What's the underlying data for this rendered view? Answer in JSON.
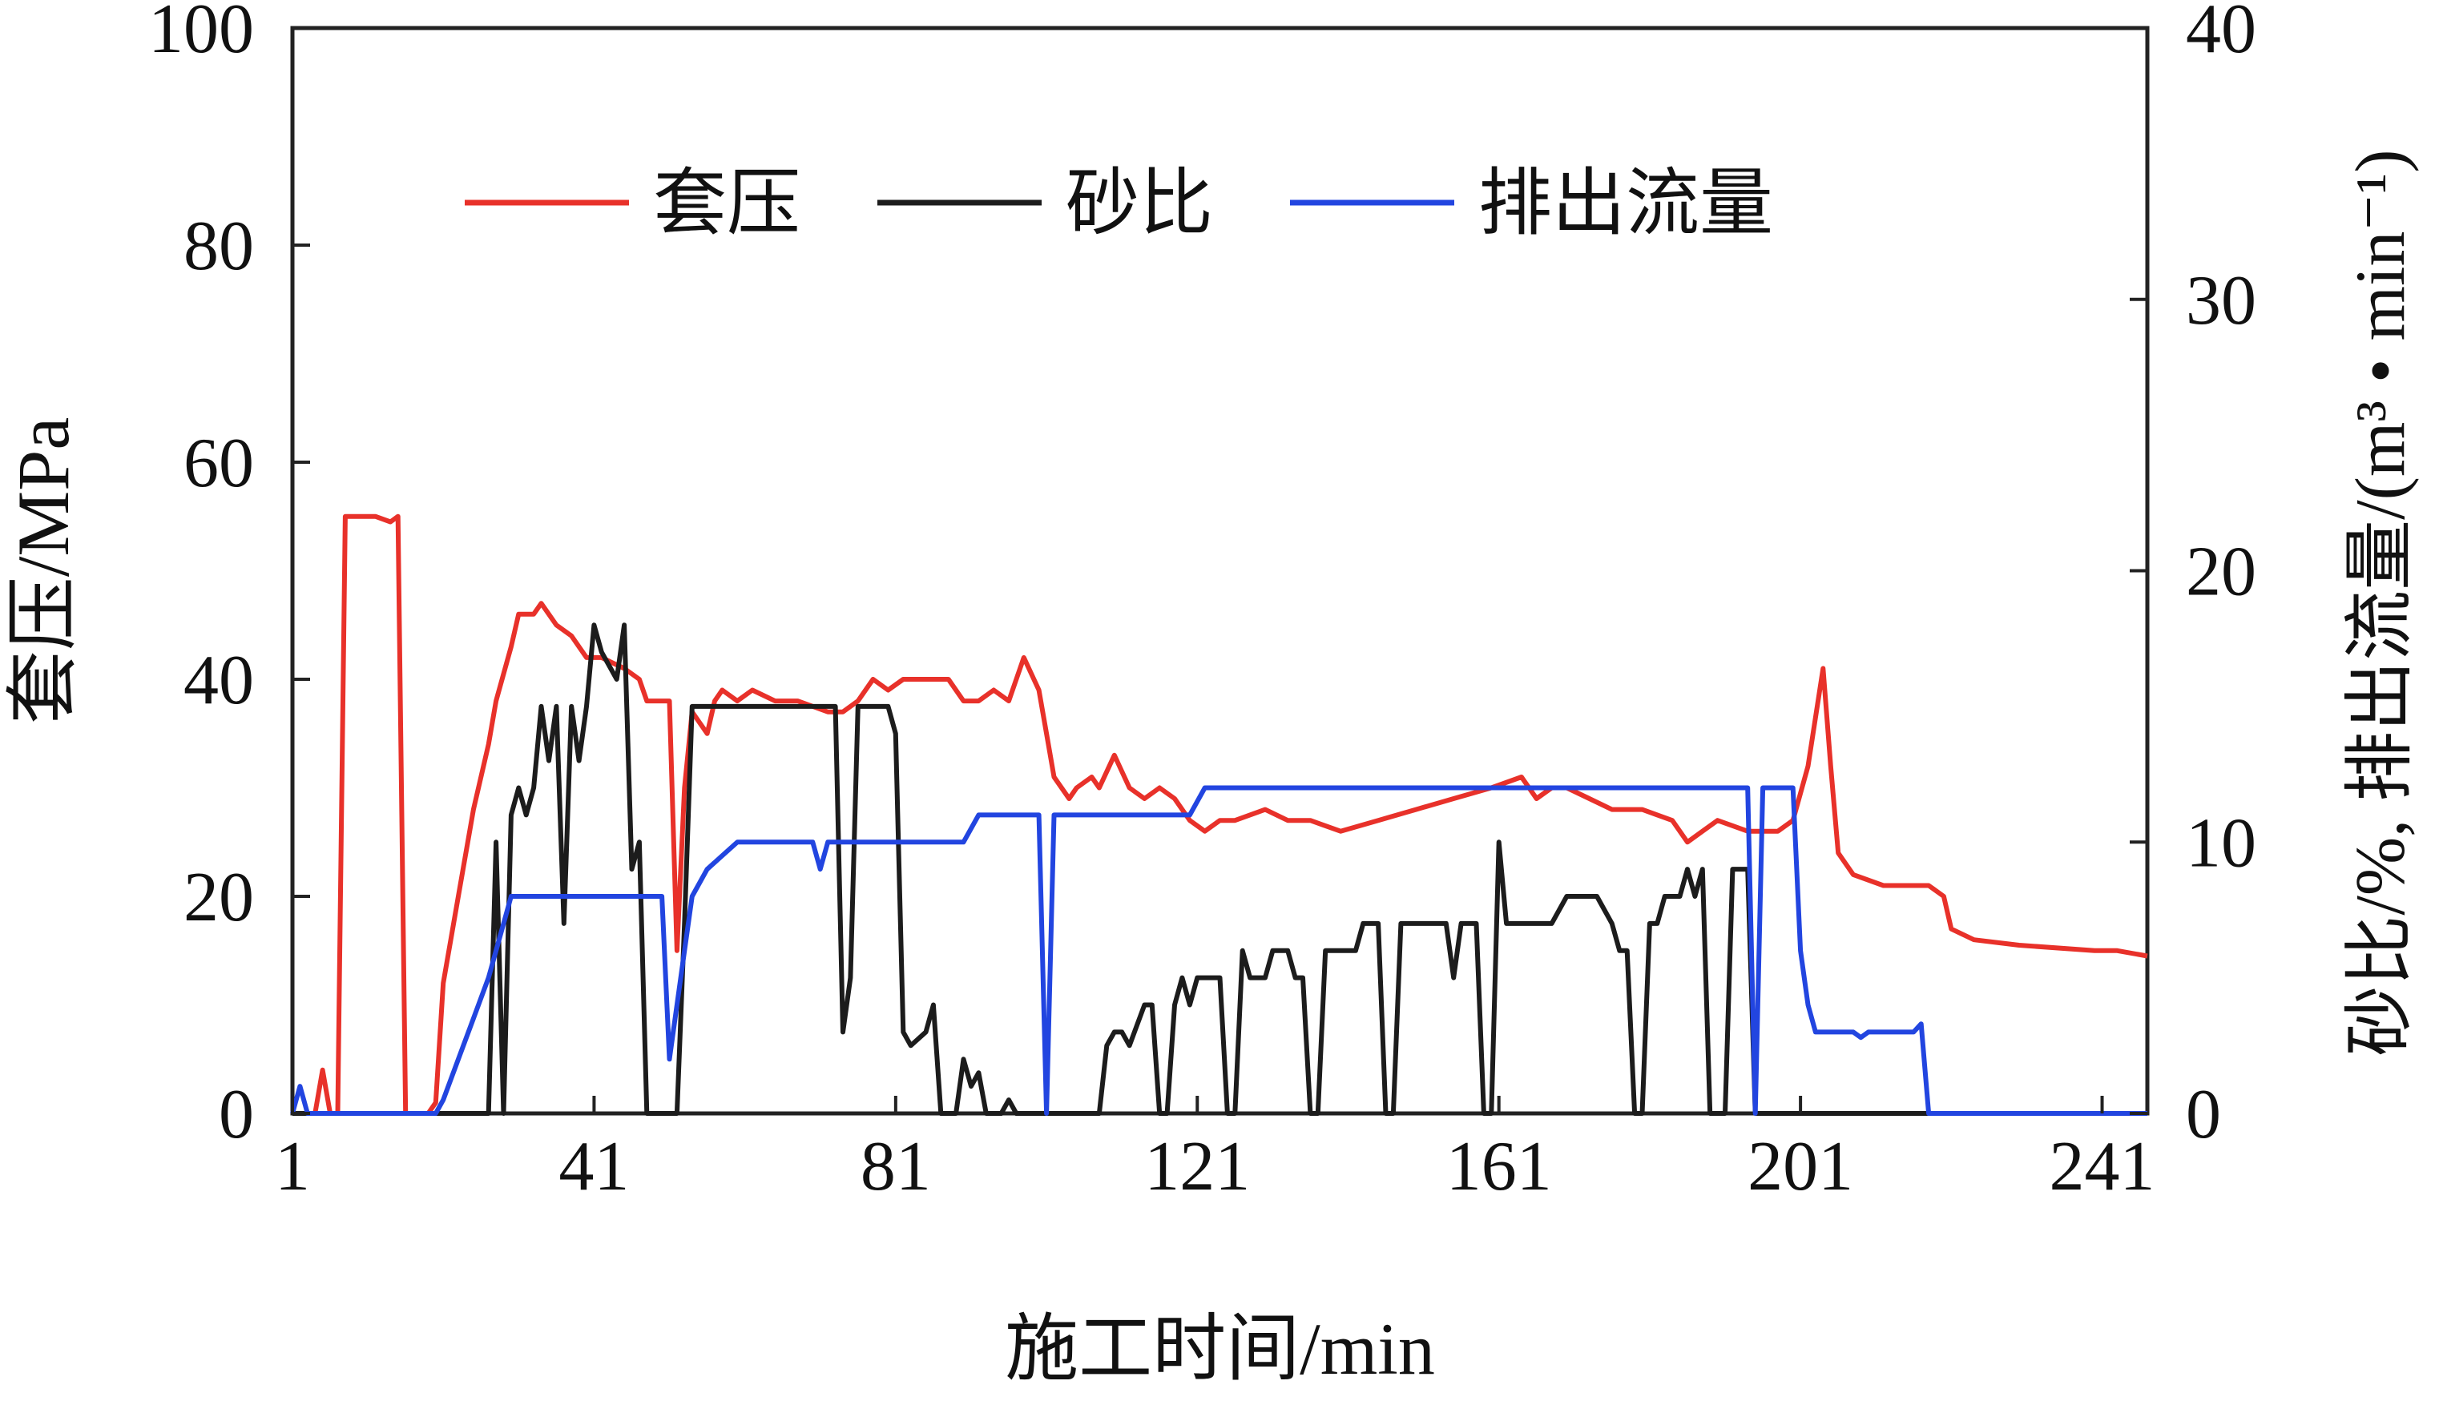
{
  "chart_data": {
    "type": "line",
    "xlabel": "施工时间/min",
    "ylabel_left": "套压/MPa",
    "ylabel_right": "砂比/%, 排出流量/(m³ • min⁻¹)",
    "x_ticks": [
      1,
      41,
      81,
      121,
      161,
      201,
      241
    ],
    "xlim": [
      1,
      247
    ],
    "ylim_left": [
      0,
      100
    ],
    "yticks_left": [
      0,
      20,
      40,
      60,
      80,
      100
    ],
    "ylim_right": [
      0,
      40
    ],
    "yticks_right": [
      0,
      10,
      20,
      30,
      40
    ],
    "grid": false,
    "legend_position": "top-center",
    "series": [
      {
        "name": "套压",
        "axis": "left",
        "color": "#e8312a",
        "points": [
          [
            1,
            0
          ],
          [
            4,
            0
          ],
          [
            5,
            4
          ],
          [
            6,
            0
          ],
          [
            7,
            0
          ],
          [
            8,
            55
          ],
          [
            12,
            55
          ],
          [
            14,
            54.5
          ],
          [
            15,
            55
          ],
          [
            16,
            0
          ],
          [
            19,
            0
          ],
          [
            20,
            1
          ],
          [
            21,
            12
          ],
          [
            23,
            20
          ],
          [
            25,
            28
          ],
          [
            27,
            34
          ],
          [
            28,
            38
          ],
          [
            30,
            43
          ],
          [
            31,
            46
          ],
          [
            33,
            46
          ],
          [
            34,
            47
          ],
          [
            36,
            45
          ],
          [
            38,
            44
          ],
          [
            40,
            42
          ],
          [
            42,
            42
          ],
          [
            45,
            41
          ],
          [
            47,
            40
          ],
          [
            48,
            38
          ],
          [
            51,
            38
          ],
          [
            52,
            15
          ],
          [
            53,
            30
          ],
          [
            54,
            37
          ],
          [
            56,
            35
          ],
          [
            57,
            38
          ],
          [
            58,
            39
          ],
          [
            60,
            38
          ],
          [
            62,
            39
          ],
          [
            65,
            38
          ],
          [
            68,
            38
          ],
          [
            72,
            37
          ],
          [
            74,
            37
          ],
          [
            76,
            38
          ],
          [
            78,
            40
          ],
          [
            80,
            39
          ],
          [
            82,
            40
          ],
          [
            85,
            40
          ],
          [
            88,
            40
          ],
          [
            90,
            38
          ],
          [
            92,
            38
          ],
          [
            94,
            39
          ],
          [
            96,
            38
          ],
          [
            98,
            42
          ],
          [
            100,
            39
          ],
          [
            101,
            35
          ],
          [
            102,
            31
          ],
          [
            103,
            30
          ],
          [
            104,
            29
          ],
          [
            105,
            30
          ],
          [
            107,
            31
          ],
          [
            108,
            30
          ],
          [
            110,
            33
          ],
          [
            112,
            30
          ],
          [
            114,
            29
          ],
          [
            116,
            30
          ],
          [
            118,
            29
          ],
          [
            120,
            27
          ],
          [
            122,
            26
          ],
          [
            124,
            27
          ],
          [
            126,
            27
          ],
          [
            130,
            28
          ],
          [
            133,
            27
          ],
          [
            136,
            27
          ],
          [
            140,
            26
          ],
          [
            145,
            27
          ],
          [
            150,
            28
          ],
          [
            155,
            29
          ],
          [
            160,
            30
          ],
          [
            164,
            31
          ],
          [
            166,
            29
          ],
          [
            168,
            30
          ],
          [
            170,
            30
          ],
          [
            173,
            29
          ],
          [
            176,
            28
          ],
          [
            180,
            28
          ],
          [
            184,
            27
          ],
          [
            186,
            25
          ],
          [
            188,
            26
          ],
          [
            190,
            27
          ],
          [
            194,
            26
          ],
          [
            198,
            26
          ],
          [
            200,
            27
          ],
          [
            202,
            32
          ],
          [
            204,
            41
          ],
          [
            205,
            32
          ],
          [
            206,
            24
          ],
          [
            208,
            22
          ],
          [
            212,
            21
          ],
          [
            218,
            21
          ],
          [
            220,
            20
          ],
          [
            221,
            17
          ],
          [
            224,
            16
          ],
          [
            230,
            15.5
          ],
          [
            240,
            15
          ],
          [
            243,
            15
          ],
          [
            247,
            14.5
          ]
        ]
      },
      {
        "name": "砂比",
        "axis": "right",
        "color": "#1c1c1c",
        "points": [
          [
            1,
            0
          ],
          [
            27,
            0
          ],
          [
            28,
            10
          ],
          [
            29,
            0
          ],
          [
            30,
            11
          ],
          [
            31,
            12
          ],
          [
            32,
            11
          ],
          [
            33,
            12
          ],
          [
            34,
            15
          ],
          [
            35,
            13
          ],
          [
            36,
            15
          ],
          [
            37,
            7
          ],
          [
            38,
            15
          ],
          [
            39,
            13
          ],
          [
            40,
            15
          ],
          [
            41,
            18
          ],
          [
            42,
            17
          ],
          [
            44,
            16
          ],
          [
            45,
            18
          ],
          [
            46,
            9
          ],
          [
            47,
            10
          ],
          [
            48,
            0
          ],
          [
            51,
            0
          ],
          [
            52,
            0
          ],
          [
            53,
            7
          ],
          [
            54,
            15
          ],
          [
            56,
            15
          ],
          [
            57,
            15
          ],
          [
            58,
            15
          ],
          [
            60,
            15
          ],
          [
            62,
            15
          ],
          [
            64,
            15
          ],
          [
            66,
            15
          ],
          [
            68,
            15
          ],
          [
            70,
            15
          ],
          [
            72,
            15
          ],
          [
            73,
            15
          ],
          [
            74,
            3
          ],
          [
            75,
            5
          ],
          [
            76,
            15
          ],
          [
            78,
            15
          ],
          [
            80,
            15
          ],
          [
            81,
            14
          ],
          [
            82,
            3
          ],
          [
            83,
            2.5
          ],
          [
            85,
            3
          ],
          [
            86,
            4
          ],
          [
            87,
            0
          ],
          [
            89,
            0
          ],
          [
            90,
            2
          ],
          [
            91,
            1
          ],
          [
            92,
            1.5
          ],
          [
            93,
            0
          ],
          [
            95,
            0
          ],
          [
            96,
            0.5
          ],
          [
            97,
            0
          ],
          [
            106,
            0
          ],
          [
            108,
            0
          ],
          [
            109,
            2.5
          ],
          [
            110,
            3
          ],
          [
            111,
            3
          ],
          [
            112,
            2.5
          ],
          [
            114,
            4
          ],
          [
            115,
            4
          ],
          [
            116,
            0
          ],
          [
            117,
            0
          ],
          [
            118,
            4
          ],
          [
            119,
            5
          ],
          [
            120,
            4
          ],
          [
            121,
            5
          ],
          [
            122,
            5
          ],
          [
            124,
            5
          ],
          [
            125,
            0
          ],
          [
            126,
            0
          ],
          [
            127,
            6
          ],
          [
            128,
            5
          ],
          [
            130,
            5
          ],
          [
            131,
            6
          ],
          [
            132,
            6
          ],
          [
            133,
            6
          ],
          [
            134,
            5
          ],
          [
            135,
            5
          ],
          [
            136,
            0
          ],
          [
            137,
            0
          ],
          [
            138,
            6
          ],
          [
            139,
            6
          ],
          [
            140,
            6
          ],
          [
            142,
            6
          ],
          [
            143,
            7
          ],
          [
            144,
            7
          ],
          [
            145,
            7
          ],
          [
            146,
            0
          ],
          [
            147,
            0
          ],
          [
            148,
            7
          ],
          [
            149,
            7
          ],
          [
            150,
            7
          ],
          [
            152,
            7
          ],
          [
            153,
            7
          ],
          [
            154,
            7
          ],
          [
            155,
            5
          ],
          [
            156,
            7
          ],
          [
            158,
            7
          ],
          [
            159,
            0
          ],
          [
            160,
            0
          ],
          [
            161,
            10
          ],
          [
            162,
            7
          ],
          [
            163,
            7
          ],
          [
            164,
            7
          ],
          [
            165,
            7
          ],
          [
            166,
            7
          ],
          [
            168,
            7
          ],
          [
            170,
            8
          ],
          [
            172,
            8
          ],
          [
            174,
            8
          ],
          [
            176,
            7
          ],
          [
            177,
            6
          ],
          [
            178,
            6
          ],
          [
            179,
            0
          ],
          [
            180,
            0
          ],
          [
            181,
            7
          ],
          [
            182,
            7
          ],
          [
            183,
            8
          ],
          [
            184,
            8
          ],
          [
            185,
            8
          ],
          [
            186,
            9
          ],
          [
            187,
            8
          ],
          [
            188,
            9
          ],
          [
            189,
            0
          ],
          [
            191,
            0
          ],
          [
            192,
            9
          ],
          [
            194,
            9
          ],
          [
            195,
            0
          ],
          [
            197,
            0
          ],
          [
            250,
            0
          ]
        ]
      },
      {
        "name": "排出流量",
        "axis": "right",
        "color": "#2245e0",
        "points": [
          [
            1,
            0
          ],
          [
            2,
            1
          ],
          [
            3,
            0
          ],
          [
            18,
            0
          ],
          [
            20,
            0
          ],
          [
            21,
            0.5
          ],
          [
            23,
            2
          ],
          [
            25,
            3.5
          ],
          [
            27,
            5
          ],
          [
            28,
            6
          ],
          [
            29,
            7
          ],
          [
            30,
            8
          ],
          [
            32,
            8
          ],
          [
            34,
            8
          ],
          [
            36,
            8
          ],
          [
            40,
            8
          ],
          [
            44,
            8
          ],
          [
            48,
            8
          ],
          [
            50,
            8
          ],
          [
            51,
            2
          ],
          [
            52,
            4
          ],
          [
            53,
            6
          ],
          [
            54,
            8
          ],
          [
            56,
            9
          ],
          [
            58,
            9.5
          ],
          [
            60,
            10
          ],
          [
            64,
            10
          ],
          [
            68,
            10
          ],
          [
            70,
            10
          ],
          [
            71,
            9
          ],
          [
            72,
            10
          ],
          [
            74,
            10
          ],
          [
            76,
            10
          ],
          [
            78,
            10
          ],
          [
            80,
            10
          ],
          [
            84,
            10
          ],
          [
            88,
            10
          ],
          [
            90,
            10
          ],
          [
            92,
            11
          ],
          [
            94,
            11
          ],
          [
            96,
            11
          ],
          [
            98,
            11
          ],
          [
            100,
            11
          ],
          [
            101,
            0
          ],
          [
            102,
            11
          ],
          [
            104,
            11
          ],
          [
            108,
            11
          ],
          [
            112,
            11
          ],
          [
            116,
            11
          ],
          [
            120,
            11
          ],
          [
            121,
            11.5
          ],
          [
            122,
            12
          ],
          [
            124,
            12
          ],
          [
            128,
            12
          ],
          [
            132,
            12
          ],
          [
            136,
            12
          ],
          [
            140,
            12
          ],
          [
            144,
            12
          ],
          [
            148,
            12
          ],
          [
            152,
            12
          ],
          [
            156,
            12
          ],
          [
            160,
            12
          ],
          [
            164,
            12
          ],
          [
            168,
            12
          ],
          [
            172,
            12
          ],
          [
            176,
            12
          ],
          [
            180,
            12
          ],
          [
            184,
            12
          ],
          [
            188,
            12
          ],
          [
            192,
            12
          ],
          [
            194,
            12
          ],
          [
            195,
            0
          ],
          [
            196,
            12
          ],
          [
            198,
            12
          ],
          [
            199,
            12
          ],
          [
            200,
            12
          ],
          [
            201,
            6
          ],
          [
            202,
            4
          ],
          [
            203,
            3
          ],
          [
            204,
            3
          ],
          [
            206,
            3
          ],
          [
            208,
            3
          ],
          [
            209,
            2.8
          ],
          [
            210,
            3
          ],
          [
            212,
            3
          ],
          [
            214,
            3
          ],
          [
            216,
            3
          ],
          [
            217,
            3.3
          ],
          [
            218,
            0
          ],
          [
            220,
            0
          ],
          [
            250,
            0
          ]
        ]
      }
    ]
  }
}
